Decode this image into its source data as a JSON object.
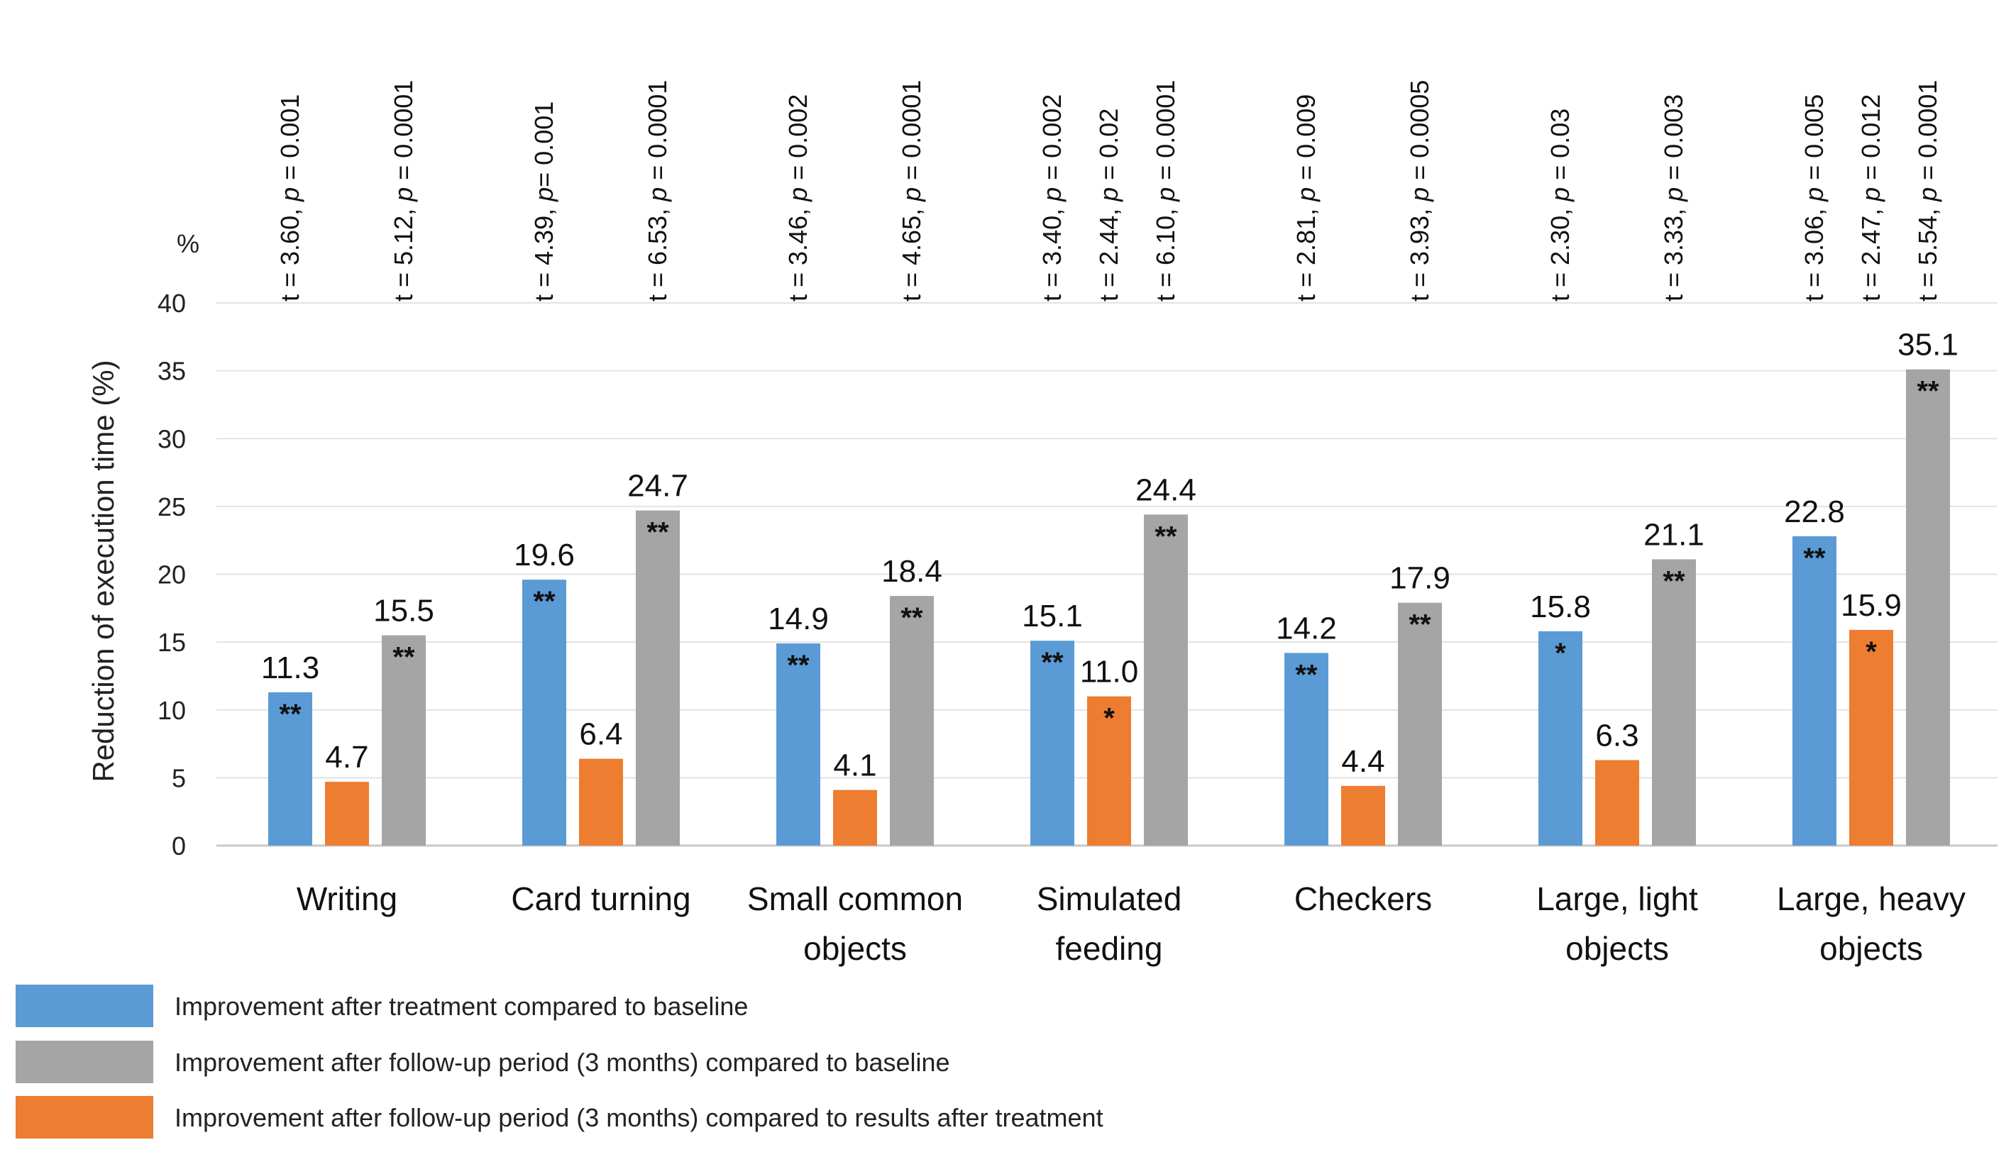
{
  "chart_data": {
    "type": "bar",
    "title": "",
    "xlabel": "",
    "ylabel": "Reduction of execution time  (%)",
    "unit_label": "%",
    "ylim": [
      0,
      40
    ],
    "yticks": [
      0,
      5,
      10,
      15,
      20,
      25,
      30,
      35,
      40
    ],
    "categories": [
      [
        "Writing"
      ],
      [
        "Card turning"
      ],
      [
        "Small common",
        "objects"
      ],
      [
        "Simulated",
        "feeding"
      ],
      [
        "Checkers"
      ],
      [
        "Large, light",
        "objects"
      ],
      [
        "Large, heavy",
        "objects"
      ]
    ],
    "series": [
      {
        "name": "Improvement after treatment compared to baseline",
        "color": "#5b9bd5",
        "values": [
          11.3,
          19.6,
          14.9,
          15.1,
          14.2,
          15.8,
          22.8
        ],
        "value_labels": [
          "11.3",
          "19.6",
          "14.9",
          "15.1",
          "14.2",
          "15.8",
          "22.8"
        ],
        "significance": [
          "**",
          "**",
          "**",
          "**",
          "**",
          "*",
          "**"
        ]
      },
      {
        "name": "Improvement after follow-up period (3 months) compared to results after treatment",
        "color": "#ed7d31",
        "values": [
          4.7,
          6.4,
          4.1,
          11.0,
          4.4,
          6.3,
          15.9
        ],
        "value_labels": [
          "4.7",
          "6.4",
          "4.1",
          "11.0",
          "4.4",
          "6.3",
          "15.9"
        ],
        "significance": [
          "",
          "",
          "",
          "*",
          "",
          "",
          "*"
        ]
      },
      {
        "name": "Improvement after follow-up period (3 months) compared to baseline",
        "color": "#a5a5a5",
        "values": [
          15.5,
          24.7,
          18.4,
          24.4,
          17.9,
          21.1,
          35.1
        ],
        "value_labels": [
          "15.5",
          "24.7",
          "18.4",
          "24.4",
          "17.9",
          "21.1",
          "35.1"
        ],
        "significance": [
          "**",
          "**",
          "**",
          "**",
          "**",
          "**",
          "**"
        ]
      }
    ],
    "stats": [
      [
        "t = 3.60, p = 0.001",
        "",
        "t = 5.12, p = 0.0001"
      ],
      [
        "t = 4.39, p=  0.001",
        "",
        "t = 6.53, p = 0.0001"
      ],
      [
        "t = 3.46, p = 0.002",
        "",
        "t =  4.65, p = 0.0001"
      ],
      [
        "t = 3.40, p = 0.002",
        "t = 2.44, p = 0.02",
        "t = 6.10, p = 0.0001"
      ],
      [
        "t = 2.81, p = 0.009",
        "",
        "t = 3.93, p = 0.0005"
      ],
      [
        "t = 2.30, p = 0.03",
        "",
        "t = 3.33, p = 0.003"
      ],
      [
        "t = 3.06, p = 0.005",
        "t = 2.47, p = 0.012",
        "t = 5.54, p = 0.0001"
      ]
    ],
    "legend": [
      {
        "label": "Improvement after treatment compared to baseline",
        "color": "#5b9bd5"
      },
      {
        "label": "Improvement after follow-up period (3 months) compared to baseline",
        "color": "#a5a5a5"
      },
      {
        "label": "Improvement after follow-up period (3 months) compared to results after treatment",
        "color": "#ed7d31"
      }
    ],
    "legend_position": "bottom-left",
    "grid": true
  }
}
